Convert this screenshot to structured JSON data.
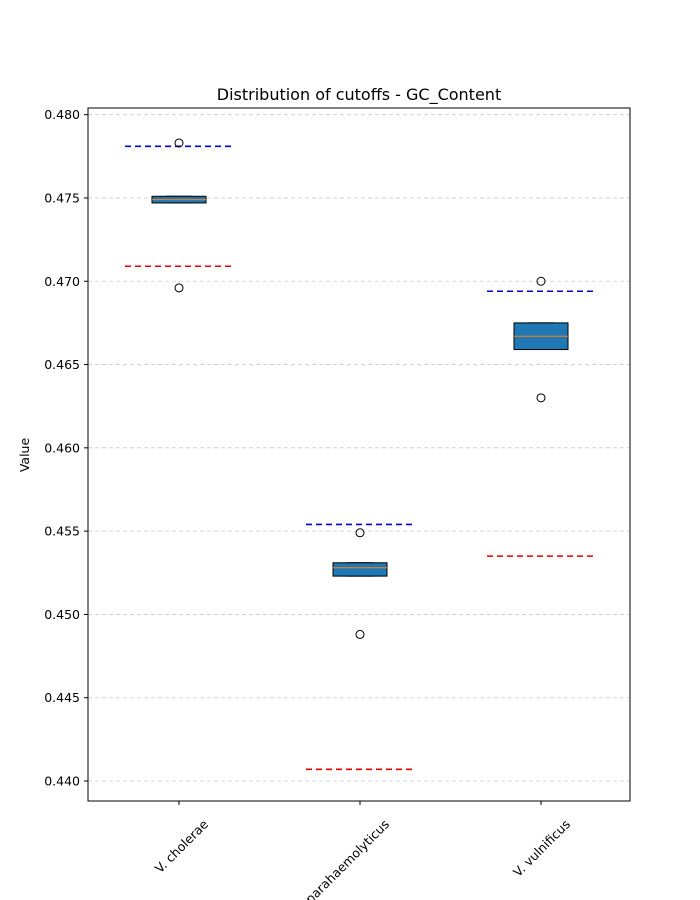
{
  "chart_data": {
    "type": "box",
    "title": "Distribution of cutoffs - GC_Content",
    "xlabel": "",
    "ylabel": "Value",
    "ylim": [
      0.4388,
      0.4804
    ],
    "grid": "y-dashed",
    "y_ticks": [
      "0.440",
      "0.445",
      "0.450",
      "0.455",
      "0.460",
      "0.465",
      "0.470",
      "0.475",
      "0.480"
    ],
    "categories": [
      "V. cholerae",
      "V. parahaemolyticus",
      "V. vulnificus"
    ],
    "boxes": [
      {
        "category": "V. cholerae",
        "q1": 0.4747,
        "median": 0.4749,
        "q3": 0.4751,
        "whisker_low": 0.4747,
        "whisker_high": 0.4751,
        "outliers": [
          0.4783,
          0.4696
        ],
        "upper_cutoff": 0.4781,
        "lower_cutoff": 0.4709
      },
      {
        "category": "V. parahaemolyticus",
        "q1": 0.4523,
        "median": 0.4528,
        "q3": 0.4531,
        "whisker_low": 0.4523,
        "whisker_high": 0.4531,
        "outliers": [
          0.4549,
          0.4488
        ],
        "upper_cutoff": 0.4554,
        "lower_cutoff": 0.4407
      },
      {
        "category": "V. vulnificus",
        "q1": 0.4659,
        "median": 0.4667,
        "q3": 0.4675,
        "whisker_low": 0.4659,
        "whisker_high": 0.4675,
        "outliers": [
          0.47,
          0.463
        ],
        "upper_cutoff": 0.4694,
        "lower_cutoff": 0.4535
      }
    ],
    "colors": {
      "box_fill": "#1f77b4",
      "box_edge": "#000000",
      "median": "#ff7f0e",
      "upper_cutoff": "#0000cc",
      "lower_cutoff": "#dd0000",
      "grid": "#cccccc"
    }
  }
}
